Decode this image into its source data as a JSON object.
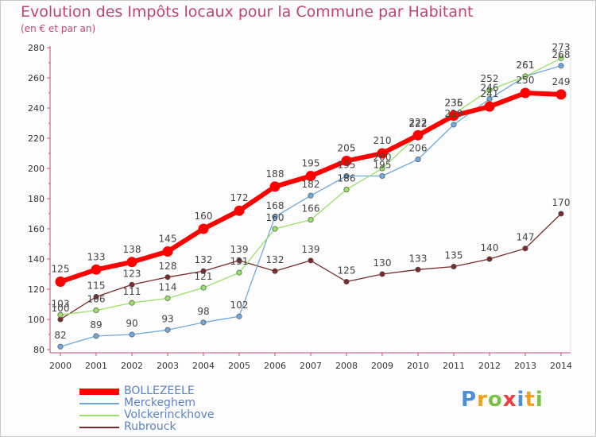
{
  "chart_data": {
    "type": "line",
    "title": "Evolution des Impôts locaux pour la Commune par Habitant",
    "subtitle": "(en € et par an)",
    "xlabel": "",
    "ylabel": "",
    "ylim": [
      80,
      280
    ],
    "yticks": [
      "80",
      "100",
      "120",
      "140",
      "160",
      "180",
      "200",
      "220",
      "240",
      "260",
      "280"
    ],
    "categories": [
      "2000",
      "2001",
      "2002",
      "2003",
      "2004",
      "2005",
      "2006",
      "2007",
      "2008",
      "2009",
      "2010",
      "2011",
      "2012",
      "2013",
      "2014"
    ],
    "series": [
      {
        "name": "BOLLEZEELE",
        "color": "#ff0000",
        "values": [
          125,
          133,
          138,
          145,
          160,
          172,
          188,
          195,
          205,
          210,
          222,
          235,
          241,
          250,
          249
        ]
      },
      {
        "name": "Merckeghem",
        "color": "#6fa8dc",
        "values": [
          82,
          89,
          90,
          93,
          98,
          102,
          168,
          182,
          195,
          195,
          206,
          229,
          246,
          261,
          268
        ]
      },
      {
        "name": "Volckerinckhove",
        "color": "#99e066",
        "values": [
          103,
          106,
          111,
          114,
          121,
          131,
          160,
          166,
          186,
          200,
          222,
          236,
          252,
          261,
          273
        ]
      },
      {
        "name": "Rubrouck",
        "color": "#7a2a2a",
        "values": [
          100,
          115,
          123,
          128,
          132,
          139,
          132,
          139,
          125,
          130,
          133,
          135,
          140,
          147,
          170
        ]
      }
    ],
    "value_labels": {
      "BOLLEZEELE": [
        "125",
        "133",
        "138",
        "145",
        "160",
        "172",
        "188",
        "195",
        "205",
        "210",
        "222",
        "235",
        "241",
        "250",
        "249"
      ],
      "Merckeghem": [
        "82",
        "89",
        "90",
        "93",
        "98",
        "102",
        "168",
        "182",
        "195",
        "195",
        "206",
        "229",
        "246",
        "261",
        "268"
      ],
      "Volckerinckhove": [
        "103",
        "106",
        "111",
        "114",
        "121",
        "131",
        "160",
        "166",
        "186",
        "200",
        "222",
        "236",
        "252",
        "261",
        "273"
      ],
      "Rubrouck": [
        "100",
        "115",
        "123",
        "128",
        "132",
        "139",
        "132",
        "139",
        "125",
        "130",
        "133",
        "135",
        "140",
        "147",
        "170"
      ]
    },
    "legend": [
      "BOLLEZEELE",
      "Merckeghem",
      "Volckerinckhove",
      "Rubrouck"
    ],
    "grid": false,
    "legend_position": "bottom-left"
  },
  "logo": {
    "letters": [
      "P",
      "r",
      "o",
      "x",
      "i",
      "t",
      "i"
    ],
    "colors": [
      "#4a90d9",
      "#f0a020",
      "#7cc242",
      "#e84040",
      "#4a90d9",
      "#f0a020",
      "#7cc242"
    ]
  }
}
